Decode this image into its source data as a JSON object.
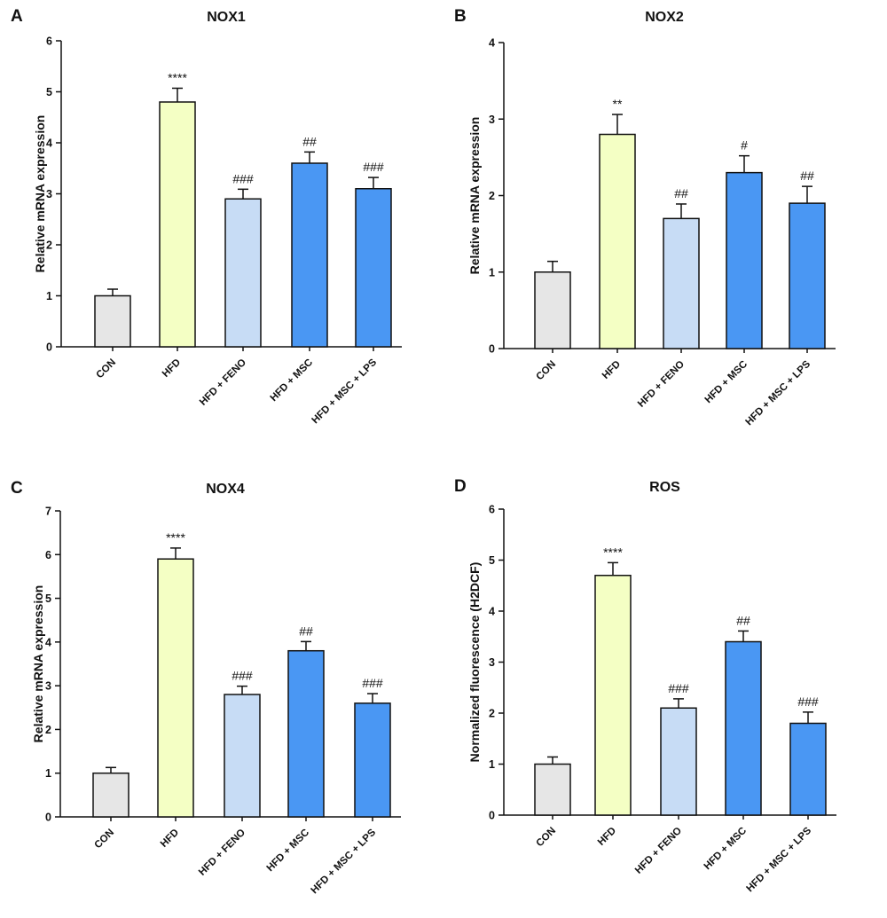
{
  "colors": {
    "CON": "#e6e6e6",
    "HFD": "#f4ffc4",
    "HFD + FENO": "#c7dcf5",
    "HFD + MSC": "#4a97f3",
    "HFD + MSC + LPS": "#4a97f3",
    "edge": "#111111"
  },
  "chart_data": [
    {
      "type": "bar",
      "panel": "A",
      "title": "NOX1",
      "ylabel": "Relative mRNA expression",
      "xlabel": "",
      "ylim": [
        0,
        6
      ],
      "yticks": [
        0,
        1,
        2,
        3,
        4,
        5,
        6
      ],
      "categories": [
        "CON",
        "HFD",
        "HFD + FENO",
        "HFD + MSC",
        "HFD + MSC + LPS"
      ],
      "values": [
        1.0,
        4.8,
        2.9,
        3.6,
        3.1
      ],
      "errors": [
        0.13,
        0.27,
        0.19,
        0.22,
        0.22
      ],
      "annotations": [
        "",
        "****",
        "###",
        "##",
        "###"
      ],
      "grid": false,
      "legend": "none"
    },
    {
      "type": "bar",
      "panel": "B",
      "title": "NOX2",
      "ylabel": "Relative mRNA expression",
      "xlabel": "",
      "ylim": [
        0,
        4
      ],
      "yticks": [
        0,
        1,
        2,
        3,
        4
      ],
      "categories": [
        "CON",
        "HFD",
        "HFD + FENO",
        "HFD + MSC",
        "HFD + MSC + LPS"
      ],
      "values": [
        1.0,
        2.8,
        1.7,
        2.3,
        1.9
      ],
      "errors": [
        0.14,
        0.26,
        0.19,
        0.22,
        0.22
      ],
      "annotations": [
        "",
        "**",
        "##",
        "#",
        "##"
      ],
      "grid": false,
      "legend": "none"
    },
    {
      "type": "bar",
      "panel": "C",
      "title": "NOX4",
      "ylabel": "Relative mRNA expression",
      "xlabel": "",
      "ylim": [
        0,
        7
      ],
      "yticks": [
        0,
        1,
        2,
        3,
        4,
        5,
        6,
        7
      ],
      "categories": [
        "CON",
        "HFD",
        "HFD + FENO",
        "HFD + MSC",
        "HFD + MSC + LPS"
      ],
      "values": [
        1.0,
        5.9,
        2.8,
        3.8,
        2.6
      ],
      "errors": [
        0.13,
        0.25,
        0.19,
        0.21,
        0.22
      ],
      "annotations": [
        "",
        "****",
        "###",
        "##",
        "###"
      ],
      "grid": false,
      "legend": "none"
    },
    {
      "type": "bar",
      "panel": "D",
      "title": "ROS",
      "ylabel": "Normalized fluorescence (H2DCF)",
      "xlabel": "",
      "ylim": [
        0,
        6
      ],
      "yticks": [
        0,
        1,
        2,
        3,
        4,
        5,
        6
      ],
      "categories": [
        "CON",
        "HFD",
        "HFD + FENO",
        "HFD + MSC",
        "HFD + MSC + LPS"
      ],
      "values": [
        1.0,
        4.7,
        2.1,
        3.4,
        1.8
      ],
      "errors": [
        0.14,
        0.25,
        0.18,
        0.21,
        0.22
      ],
      "annotations": [
        "",
        "****",
        "###",
        "##",
        "###"
      ],
      "grid": false,
      "legend": "none"
    }
  ]
}
